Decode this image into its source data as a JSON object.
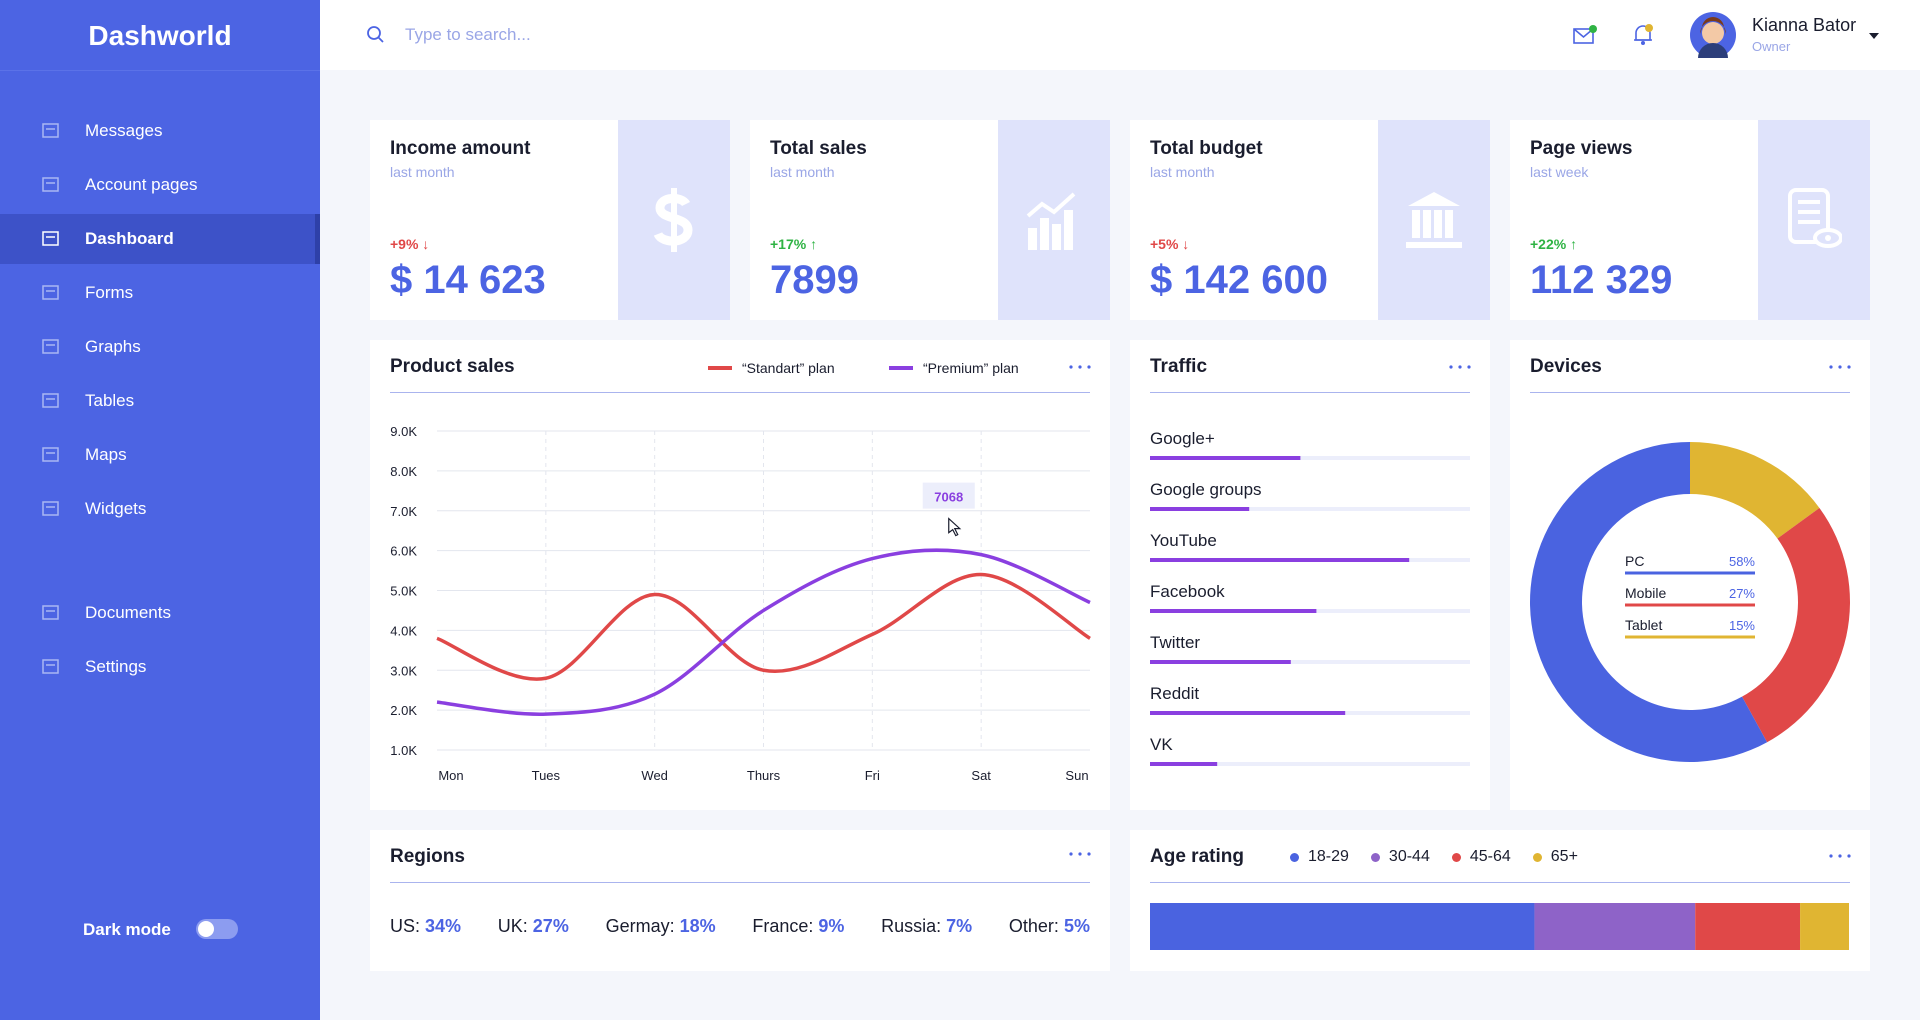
{
  "sidebar": {
    "brand": "Dashworld",
    "menu": [
      "Messages",
      "Account pages",
      "Dashboard",
      "Forms",
      "Graphs",
      "Tables",
      "Maps",
      "Widgets",
      "Documents",
      "Settings"
    ],
    "active": 2,
    "dark_mode": "Dark mode"
  },
  "header": {
    "search_placeholder": "Type to search...",
    "user_name": "Kianna Bator",
    "user_role": "Owner"
  },
  "stats": [
    {
      "title": "Income amount",
      "period": "last month",
      "change": "+9% ↓",
      "change_color": "#e04848",
      "value": "$ 14 623"
    },
    {
      "title": "Total sales",
      "period": "last month",
      "change": "+17% ↑",
      "change_color": "#2fb344",
      "value": "7899"
    },
    {
      "title": "Total budget",
      "period": "last month",
      "change": "+5% ↓",
      "change_color": "#e04848",
      "value": "$ 142 600"
    },
    {
      "title": "Page views",
      "period": "last week",
      "change": "+22% ↑",
      "change_color": "#2fb344",
      "value": "112 329"
    }
  ],
  "chart_data": [
    {
      "type": "line",
      "title": "Product sales",
      "categories": [
        "Mon",
        "Tues",
        "Wed",
        "Thurs",
        "Fri",
        "Sat",
        "Sun"
      ],
      "series": [
        {
          "name": "“Standart” plan",
          "color": "#e04848",
          "values": [
            3.8,
            2.8,
            4.9,
            3.0,
            3.9,
            5.4,
            3.8
          ]
        },
        {
          "name": "“Premium” plan",
          "color": "#8a3fe0",
          "values": [
            2.2,
            1.9,
            2.4,
            4.5,
            5.8,
            5.9,
            4.7
          ]
        }
      ],
      "ylim": [
        1,
        9
      ],
      "yticks": [
        {
          "value": 1,
          "label": "1.0K"
        },
        {
          "value": 2,
          "label": "2.0K"
        },
        {
          "value": 3,
          "label": "3.0K"
        },
        {
          "value": 4,
          "label": "4.0K"
        },
        {
          "value": 5,
          "label": "5.0K"
        },
        {
          "value": 6,
          "label": "6.0K"
        },
        {
          "value": 7,
          "label": "7.0K"
        },
        {
          "value": 8,
          "label": "8.0K"
        },
        {
          "value": 9,
          "label": "9.0K"
        }
      ],
      "grid": true,
      "annotation": "7068"
    },
    {
      "type": "hbar",
      "title": "Traffic",
      "categories": [
        "Google+",
        "Google groups",
        "YouTube",
        "Facebook",
        "Twitter",
        "Reddit",
        "VK"
      ],
      "values": [
        47,
        31,
        81,
        52,
        44,
        61,
        21
      ],
      "xlim": [
        0,
        100
      ],
      "color": "#8a3fe0"
    },
    {
      "type": "pie",
      "title": "Devices",
      "categories": [
        "PC",
        "Mobile",
        "Tablet"
      ],
      "values": [
        58,
        27,
        15
      ],
      "value_labels": [
        "58%",
        "27%",
        "15%"
      ],
      "colors": [
        "#4a63e0",
        "#e04848",
        "#e0b532"
      ]
    },
    {
      "type": "stacked_hbar",
      "title": "Age rating",
      "series": [
        {
          "name": "18-29",
          "color": "#4a63e0",
          "values": [
            55
          ]
        },
        {
          "name": "30-44",
          "color": "#8e63c8",
          "values": [
            23
          ]
        },
        {
          "name": "45-64",
          "color": "#e04848",
          "values": [
            15
          ]
        },
        {
          "name": "65+",
          "color": "#e0b532",
          "values": [
            7
          ]
        }
      ],
      "xlim": [
        0,
        100
      ]
    }
  ],
  "regions": {
    "title": "Regions",
    "items": [
      {
        "name": "US:",
        "value": "34%"
      },
      {
        "name": "UK:",
        "value": "27%"
      },
      {
        "name": "Germay:",
        "value": "18%"
      },
      {
        "name": "France:",
        "value": "9%"
      },
      {
        "name": "Russia:",
        "value": "7%"
      },
      {
        "name": "Other:",
        "value": "5%"
      }
    ]
  }
}
